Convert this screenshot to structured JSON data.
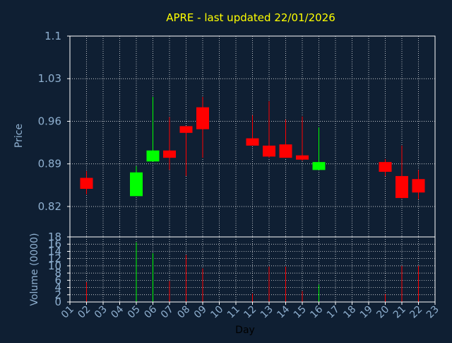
{
  "colors": {
    "background": "#0f1f33",
    "axis": "#ffffff",
    "grid": "#ffffff",
    "title": "#ffff00",
    "label": "#8fb0d0",
    "up": "#00ff00",
    "down": "#ff0000",
    "xlabel": "#000000"
  },
  "chart_data": [
    {
      "type": "candlestick",
      "title": "APRE - last updated 22/01/2026",
      "ylabel": "Price",
      "ylim": [
        0.77,
        1.1
      ],
      "yticks": [
        "1.1",
        "1.03",
        "0.96",
        "0.89",
        "0.82"
      ],
      "ytick_values": [
        1.1,
        1.03,
        0.96,
        0.89,
        0.82
      ],
      "grid": true,
      "candles": [
        {
          "day": "02",
          "open": 0.867,
          "high": 0.878,
          "low": 0.84,
          "close": 0.849
        },
        {
          "day": "05",
          "open": 0.837,
          "high": 0.886,
          "low": 0.837,
          "close": 0.876
        },
        {
          "day": "06",
          "open": 0.894,
          "high": 1.0,
          "low": 0.894,
          "close": 0.912
        },
        {
          "day": "07",
          "open": 0.912,
          "high": 0.967,
          "low": 0.88,
          "close": 0.9
        },
        {
          "day": "08",
          "open": 0.952,
          "high": 0.952,
          "low": 0.87,
          "close": 0.941
        },
        {
          "day": "09",
          "open": 0.983,
          "high": 1.0,
          "low": 0.9,
          "close": 0.947
        },
        {
          "day": "12",
          "open": 0.932,
          "high": 0.97,
          "low": 0.92,
          "close": 0.92
        },
        {
          "day": "13",
          "open": 0.92,
          "high": 0.993,
          "low": 0.9,
          "close": 0.902
        },
        {
          "day": "14",
          "open": 0.922,
          "high": 0.963,
          "low": 0.9,
          "close": 0.9
        },
        {
          "day": "15",
          "open": 0.904,
          "high": 0.968,
          "low": 0.895,
          "close": 0.897
        },
        {
          "day": "16",
          "open": 0.88,
          "high": 0.95,
          "low": 0.88,
          "close": 0.893
        },
        {
          "day": "20",
          "open": 0.893,
          "high": 0.898,
          "low": 0.87,
          "close": 0.877
        },
        {
          "day": "21",
          "open": 0.87,
          "high": 0.92,
          "low": 0.833,
          "close": 0.834
        },
        {
          "day": "22",
          "open": 0.865,
          "high": 0.88,
          "low": 0.832,
          "close": 0.843
        }
      ]
    },
    {
      "type": "bar",
      "ylabel": "Volume (0000)",
      "xlabel": "Day",
      "ylim": [
        0,
        18
      ],
      "yticks": [
        "18",
        "16",
        "14",
        "12",
        "10",
        "8",
        "6",
        "4",
        "2",
        "0"
      ],
      "ytick_values": [
        18,
        16,
        14,
        12,
        10,
        8,
        6,
        4,
        2,
        0
      ],
      "categories": [
        "01",
        "02",
        "03",
        "04",
        "05",
        "06",
        "07",
        "08",
        "09",
        "10",
        "11",
        "12",
        "13",
        "14",
        "15",
        "16",
        "17",
        "18",
        "19",
        "20",
        "21",
        "22",
        "23"
      ],
      "volumes": [
        {
          "day": "02",
          "value": 5.5,
          "direction": "down"
        },
        {
          "day": "05",
          "value": 16.5,
          "direction": "up"
        },
        {
          "day": "06",
          "value": 13.5,
          "direction": "up"
        },
        {
          "day": "07",
          "value": 5.8,
          "direction": "down"
        },
        {
          "day": "08",
          "value": 13.0,
          "direction": "down"
        },
        {
          "day": "09",
          "value": 9.3,
          "direction": "down"
        },
        {
          "day": "12",
          "value": 2.3,
          "direction": "down"
        },
        {
          "day": "13",
          "value": 9.8,
          "direction": "down"
        },
        {
          "day": "14",
          "value": 9.8,
          "direction": "down"
        },
        {
          "day": "15",
          "value": 3.0,
          "direction": "down"
        },
        {
          "day": "16",
          "value": 4.8,
          "direction": "up"
        },
        {
          "day": "20",
          "value": 2.2,
          "direction": "down"
        },
        {
          "day": "21",
          "value": 10.0,
          "direction": "down"
        },
        {
          "day": "22",
          "value": 10.0,
          "direction": "down"
        }
      ]
    }
  ]
}
